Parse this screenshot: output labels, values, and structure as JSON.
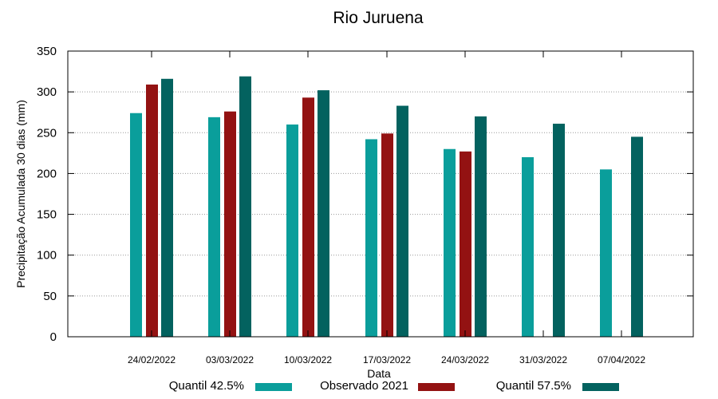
{
  "chart_data": {
    "type": "bar",
    "title": "Rio Juruena",
    "xlabel": "Data",
    "ylabel": "Precipitação Acumulada 30 dias (mm)",
    "ylim": [
      0,
      350
    ],
    "yticks": [
      0,
      50,
      100,
      150,
      200,
      250,
      300,
      350
    ],
    "grid": "horizontal-dotted",
    "legend_position": "bottom",
    "categories": [
      "24/02/2022",
      "03/03/2022",
      "10/03/2022",
      "17/03/2022",
      "24/03/2022",
      "31/03/2022",
      "07/04/2022"
    ],
    "series": [
      {
        "name": "Quantil 42.5%",
        "color": "#0a9e9b",
        "values": [
          274,
          269,
          260,
          242,
          230,
          220,
          205
        ]
      },
      {
        "name": "Observado 2021",
        "color": "#931212",
        "values": [
          309,
          276,
          293,
          249,
          227,
          null,
          null
        ]
      },
      {
        "name": "Quantil 57.5%",
        "color": "#03625f",
        "values": [
          316,
          319,
          302,
          283,
          270,
          261,
          245
        ]
      }
    ]
  }
}
